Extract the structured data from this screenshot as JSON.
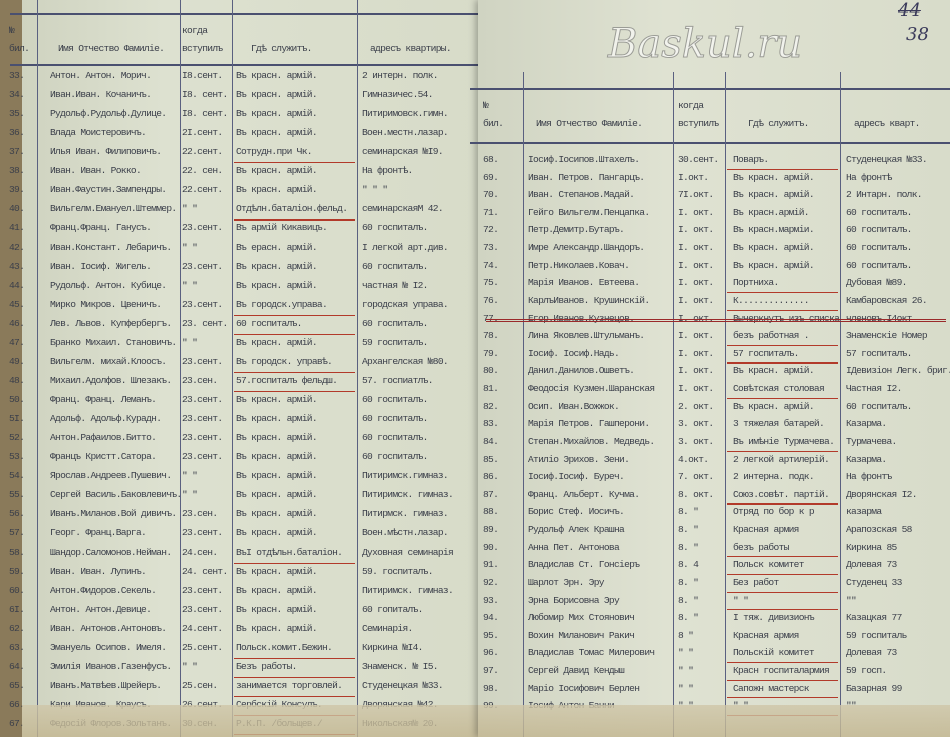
{
  "folio": {
    "crossed": "44",
    "current": "38"
  },
  "left_page": {
    "headers": {
      "num_top": "№",
      "num": "бил.",
      "name": "Имя Отчество Фамиліе.",
      "when_top": "когда",
      "when": "вступилъ",
      "where": "Гдѣ служитъ.",
      "address": "адресъ квартиры."
    },
    "rows": [
      [
        "33.",
        "Антон. Антон. Морич.",
        "I8.сент.",
        "Въ красн. армій.",
        "2 интерн. полк.",
        false
      ],
      [
        "34.",
        "Иван.Иван. Кочаничъ.",
        "I8. сент.",
        "Въ красн. армій.",
        "Гимназичес.54.",
        false
      ],
      [
        "35.",
        "Рудольф.Рудольф.Дулице.",
        "I8. сент.",
        "Въ красн. армій.",
        "Питиримовск.гимн.",
        false
      ],
      [
        "36.",
        "Влада Моистеровичъ.",
        "2I.сент.",
        "Въ красн. армій.",
        "Воен.местн.лазар.",
        false
      ],
      [
        "37.",
        "Илья Иван. Филиповичъ.",
        "22.сент.",
        "Сотрудн.при Чк.",
        "семинарская №I9.",
        true
      ],
      [
        "38.",
        "Иван. Иван. Рокко.",
        "22. сен.",
        "Въ красн. армій.",
        "На фронтѣ.",
        false
      ],
      [
        "39.",
        "Иван.Фаустин.Зампендры.",
        "22.сент.",
        "Въ красн. армій.",
        "\"   \"   \"",
        false
      ],
      [
        "40.",
        "Вильгелм.Еманyел.Штеммер.",
        "\" \"",
        "Отдѣлн.баталіон.фельд.",
        "семинарскаяМ 42.",
        true
      ],
      [
        "41.",
        "Франц.Франц. Ганусъ.",
        "23.сент.",
        "Въ армій Кикавицъ.",
        "60 госпиталъ.",
        false
      ],
      [
        "42.",
        "Иван.Констант. Лебаричъ.",
        "\" \"",
        "Въ ерасн. армій.",
        "I легкой арт.див.",
        false
      ],
      [
        "43.",
        "Иван. Iосиф. Жигель.",
        "23.сент.",
        "Въ красн. армій.",
        "60 госпиталъ.",
        false
      ],
      [
        "44.",
        "Рудольф. Антон. Кубице.",
        "\" \"",
        "Въ красн. армій.",
        "частная № I2.",
        false
      ],
      [
        "45.",
        "Мирко Микров. Цвеничъ.",
        "23.сент.",
        "Въ городск.управа.",
        "городская управа.",
        true
      ],
      [
        "46.",
        "Лев. Львов. Купфербергъ.",
        "23. сент.",
        "60 госпиталъ.",
        "60 госпиталъ.",
        true
      ],
      [
        "47.",
        "Бранко Михаил. Становичъ.",
        "\" \"",
        "Въ красн. армій.",
        "59 госпиталъ.",
        false
      ],
      [
        "49.",
        "Вильгелм. михай.Клоосъ.",
        "23.сент.",
        "Въ городск. управѣ.",
        "Архангелская №80.",
        true
      ],
      [
        "48.",
        "Михаил.Адолфов. Шлезакъ.",
        "23.сен.",
        "57.госпиталъ фельдш.",
        "57. госпиатлъ.",
        true
      ],
      [
        "50.",
        "Франц. Франц. Леманъ.",
        "23.сент.",
        "Въ красн. армій.",
        "60 госпиталъ.",
        false
      ],
      [
        "5I.",
        "Адольф. Адольф.Курадн.",
        "23.сент.",
        "Въ красн. армій.",
        "60 госпиталъ.",
        false
      ],
      [
        "52.",
        "Антон.Рафаилов.Битто.",
        "23.сент.",
        "Въ красн. армій.",
        "60 госпиталъ.",
        false
      ],
      [
        "53.",
        "Францъ Кристт.Сатора.",
        "23.сент.",
        "Въ красн. армій.",
        "60 госпиталъ.",
        false
      ],
      [
        "54.",
        "Ярослав.Андреев.Пушевич.",
        "\" \"",
        "Въ красн. армій.",
        "Питиримск.гимназ.",
        false
      ],
      [
        "55.",
        "Сергей Василь.Баковлевичъ.",
        "\" \"",
        "Въ красн. армій.",
        "Питиримск. гимназ.",
        false
      ],
      [
        "56.",
        "Иванъ.Миланов.Вой дивичъ.",
        "23.сен.",
        "Въ красн. армій.",
        "Питирмск. гимназ.",
        false
      ],
      [
        "57.",
        "Георг. Франц.Варга.",
        "23.сент.",
        "Въ красн. армій.",
        "Воен.мѣстн.лазар.",
        false
      ],
      [
        "58.",
        "Шандор.Саломонов.Нейман.",
        "24.сен.",
        "ВъI отдѣльн.баталіон.",
        "Духовная семинарія",
        true
      ],
      [
        "59.",
        "Иван. Иван. Лупинъ.",
        "24. сент.",
        "Въ красн. армій.",
        "59. госпиталъ.",
        false
      ],
      [
        "60.",
        "Антон.Фидоров.Секель.",
        "23.сент.",
        "Въ красн. армій.",
        "Питиримск. гимназ.",
        false
      ],
      [
        "6I.",
        "Антон. Антон.Девице.",
        "23.сент.",
        "Въ красн. армій.",
        "60 гопиталъ.",
        false
      ],
      [
        "62.",
        "Иван. Антонов.Антоновъ.",
        "24.сент.",
        "Въ красн. армій.",
        "Семинарія.",
        false
      ],
      [
        "63.",
        "Эмануель Осипов. Имеля.",
        "25.сент.",
        "Польск.комит.Бежин.",
        "Киркина №I4.",
        true
      ],
      [
        "64.",
        "Эмилія Иванов.Газенфусъ.",
        "\" \"",
        "Безъ работы.",
        "Знаменск. № I5.",
        true
      ],
      [
        "65.",
        "Иванъ.Матвѣев.Шрейеръ.",
        "25.сен.",
        "занимается торговлей.",
        "Студенецкая №33.",
        true
      ],
      [
        "66.",
        "Кари Иванов. Краусъ.",
        "26.сент.",
        "Сербскій Консулъ.",
        "Дворянская №42.",
        true
      ],
      [
        "67.",
        "Федосій Флоров.Зольтанъ.",
        "30.сен.",
        "Р.К.П. /больщев./",
        "Никольская№ 20.",
        true
      ]
    ]
  },
  "right_page": {
    "headers": {
      "num_top": "№",
      "num": "бил.",
      "name": "Имя Отчество Фамиліе.",
      "when_top": "когда",
      "when": "вступилъ",
      "where": "Гдѣ служитъ.",
      "address": "адресъ кварт."
    },
    "rows": [
      [
        "68.",
        "Iосиф.Iосипов.Штахелъ.",
        "30.сент.",
        "Поваръ.",
        "Студенецкая №33.",
        true,
        false
      ],
      [
        "69.",
        "Иван. Петров. Пангарцъ.",
        "I.окт.",
        "Въ красн. армій.",
        "На фронтѣ",
        false,
        false
      ],
      [
        "70.",
        "Иван. Степанов.Мадай.",
        "7I.окт.",
        "Въ красн. армій.",
        "2 Интарн. полк.",
        false,
        false
      ],
      [
        "71.",
        "Гейго Вильгелм.Пенцапка.",
        "I. окт.",
        "Въ красн.армій.",
        "60 госпиталъ.",
        false,
        false
      ],
      [
        "72.",
        "Петр.Демитр.Бутаръ.",
        "I. окт.",
        "Въ красн.марміи.",
        "60 госпиталъ.",
        false,
        false
      ],
      [
        "73.",
        "Имре Александр.Шандоръ.",
        "I. окт.",
        "Въ красн. армій.",
        "60 госпиталъ.",
        false,
        false
      ],
      [
        "74.",
        "Петр.Николаев.Ковач.",
        "I. окт.",
        "Въ красн. армій.",
        "60 госпиталъ.",
        false,
        false
      ],
      [
        "75.",
        "Марія Иванов. Евтеева.",
        "I. окт.",
        "Портниха.",
        "Дубовая №89.",
        true,
        false
      ],
      [
        "76.",
        "КарлъИванов. Крушинскій.",
        "I. окт.",
        "К..............",
        "Камбаровская 26.",
        true,
        false
      ],
      [
        "77.",
        "Егор.Иванов.Кузнецов.",
        "I. окт.",
        "Вычеркнутъ изъ списка",
        "членовъ.I4окт",
        false,
        true
      ],
      [
        "78.",
        "Лина Яковлев.Штульманъ.",
        "I. окт.",
        "безъ работная .",
        "Знаменскіе Номер",
        true,
        false
      ],
      [
        "79.",
        "Iосиф. Iосиф.Надь.",
        "I. окт.",
        "57 госпиталъ.",
        "57 госпиталъ.",
        true,
        false
      ],
      [
        "80.",
        "Данил.Данилов.Ошветъ.",
        "I. окт.",
        "Въ красн. армій.",
        "IДевизіон Легк. бриг.",
        false,
        false
      ],
      [
        "81.",
        "Феодосія Кузмен.Шаранская",
        "I. окт.",
        "Совѣтская столовая",
        "Частная I2.",
        true,
        false
      ],
      [
        "82.",
        "Осип. Иван.Вожжок.",
        "2. окт.",
        "Въ красн. армій.",
        "60 госпиталъ.",
        false,
        false
      ],
      [
        "83.",
        "Марія Петров. Гашперони.",
        "3. окт.",
        "3 тяжелая батарей.",
        "Казарма.",
        false,
        false
      ],
      [
        "84.",
        "Степан.Михайлов. Медведь.",
        "3. окт.",
        "Въ имѣніе Турмачева.",
        "Турмачева.",
        true,
        false
      ],
      [
        "85.",
        "Атиліо Эрихов. Зени.",
        "4.окт.",
        "2 легкой артилерій.",
        "Казарма.",
        false,
        false
      ],
      [
        "86.",
        "Iосиф.Iосиф. Буреч.",
        "7. окт.",
        "2 интерна. подк.",
        "На фронтъ",
        false,
        false
      ],
      [
        "87.",
        "Франц. Альберт. Кучма.",
        "8. окт.",
        "Союз.совѣт. партій.",
        "Дворянская I2.",
        true,
        false
      ],
      [
        "88.",
        "Борис Стеф. Иосичъ.",
        "8.   \"",
        "Отряд по бор к р",
        "казарма",
        false,
        false
      ],
      [
        "89.",
        "Рудольф Алек Крашна",
        "8.   \"",
        "Красная армия",
        "Арапозская 58",
        false,
        false
      ],
      [
        "90.",
        "Анна Пет. Антонова",
        "8.   \"",
        "безъ работы",
        "Киркина 85",
        true,
        false
      ],
      [
        "91.",
        "Владислав Ст. Гонсіеръ",
        "8.   4",
        "Польск комитет",
        "Долевая 73",
        true,
        false
      ],
      [
        "92.",
        "Шарлот Эрн. Эру",
        "8.   \"",
        "Без работ",
        "Студенец 33",
        true,
        false
      ],
      [
        "93.",
        "Эрна Борисовна Эру",
        "8.   \"",
        "\"     \"",
        "\"\"",
        true,
        false
      ],
      [
        "94.",
        "Любомир Мих Стоянович",
        "8.   \"",
        "I тяж. дивизионъ",
        "Казацкая 77",
        false,
        false
      ],
      [
        "95.",
        "Вохин Миланович Ракич",
        "8    \"",
        "Красная армия",
        "59 госпиталь",
        false,
        false
      ],
      [
        "96.",
        "Владислав Томас Милерович",
        "\"   \"",
        "Польскій комитет",
        "Долевая 73",
        true,
        false
      ],
      [
        "97.",
        "Сергей Давид Кендыш",
        "\"   \"",
        "Красн госпиталармия",
        "59 госп.",
        true,
        false
      ],
      [
        "98.",
        "Маріо Iосифович Берлен",
        "\"   \"",
        "Сапожн мастерск",
        "Базарная 99",
        true,
        false
      ],
      [
        "99.",
        "Iосиф Антон Банни",
        "\"   \"",
        "\"     \"",
        "\"\"",
        true,
        false
      ]
    ]
  },
  "watermark": "Baskul.ru",
  "colors": {
    "paper": "#d9ddcc",
    "ink": "#3b3f4a",
    "red_pencil": "#b23a2a",
    "rule": "#4a5070"
  }
}
